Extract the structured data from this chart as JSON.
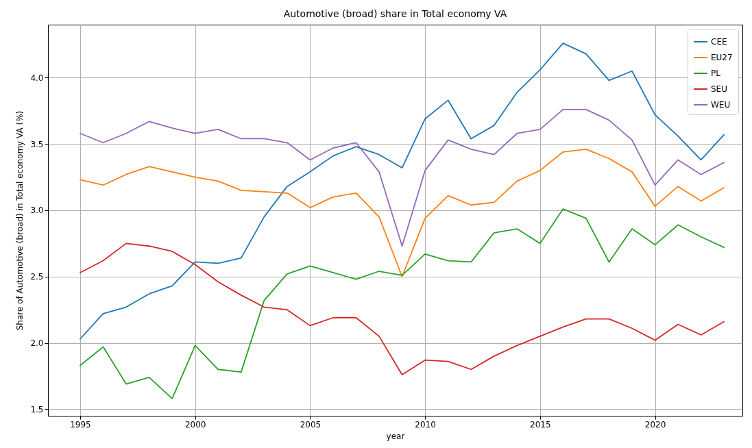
{
  "chart_data": {
    "type": "line",
    "title": "Automotive (broad) share in Total economy VA",
    "xlabel": "year",
    "ylabel": "Share of Automotive (broad) in Total economy VA (%)",
    "x": [
      1995,
      1996,
      1997,
      1998,
      1999,
      2000,
      2001,
      2002,
      2003,
      2004,
      2005,
      2006,
      2007,
      2008,
      2009,
      2010,
      2011,
      2012,
      2013,
      2014,
      2015,
      2016,
      2017,
      2018,
      2019,
      2020,
      2021,
      2022,
      2023
    ],
    "series": [
      {
        "name": "CEE",
        "color": "#1f77b4",
        "values": [
          2.03,
          2.22,
          2.27,
          2.37,
          2.43,
          2.61,
          2.6,
          2.64,
          2.95,
          3.18,
          3.29,
          3.41,
          3.48,
          3.42,
          3.32,
          3.69,
          3.83,
          3.54,
          3.64,
          3.89,
          4.06,
          4.26,
          4.18,
          3.98,
          4.05,
          3.72,
          3.56,
          3.38,
          3.57
        ]
      },
      {
        "name": "EU27",
        "color": "#ff7f0e",
        "values": [
          3.23,
          3.19,
          3.27,
          3.33,
          3.29,
          3.25,
          3.22,
          3.15,
          3.14,
          3.13,
          3.02,
          3.1,
          3.13,
          2.95,
          2.5,
          2.94,
          3.11,
          3.04,
          3.06,
          3.22,
          3.3,
          3.44,
          3.46,
          3.39,
          3.29,
          3.03,
          3.18,
          3.07,
          3.17
        ]
      },
      {
        "name": "PL",
        "color": "#2ca02c",
        "values": [
          1.83,
          1.97,
          1.69,
          1.74,
          1.58,
          1.98,
          1.8,
          1.78,
          2.32,
          2.52,
          2.58,
          2.53,
          2.48,
          2.54,
          2.51,
          2.67,
          2.62,
          2.61,
          2.83,
          2.86,
          2.75,
          3.01,
          2.94,
          2.61,
          2.86,
          2.74,
          2.89,
          2.8,
          2.72
        ]
      },
      {
        "name": "SEU",
        "color": "#d62728",
        "values": [
          2.53,
          2.62,
          2.75,
          2.73,
          2.69,
          2.59,
          2.46,
          2.36,
          2.27,
          2.25,
          2.13,
          2.19,
          2.19,
          2.05,
          1.76,
          1.87,
          1.86,
          1.8,
          1.9,
          1.98,
          2.05,
          2.12,
          2.18,
          2.18,
          2.11,
          2.02,
          2.14,
          2.06,
          2.16
        ]
      },
      {
        "name": "WEU",
        "color": "#9467bd",
        "values": [
          3.58,
          3.51,
          3.58,
          3.67,
          3.62,
          3.58,
          3.61,
          3.54,
          3.54,
          3.51,
          3.38,
          3.47,
          3.51,
          3.29,
          2.73,
          3.3,
          3.53,
          3.46,
          3.42,
          3.58,
          3.61,
          3.76,
          3.76,
          3.68,
          3.53,
          3.19,
          3.38,
          3.27,
          3.36
        ]
      }
    ],
    "xlim": [
      1993.6,
      2023.8
    ],
    "xticks": [
      1995,
      2000,
      2005,
      2010,
      2015,
      2020
    ],
    "ylim": [
      1.45,
      4.4
    ],
    "yticks": [
      1.5,
      {
        "value": 2,
        "label": "2.0"
      },
      2.5,
      {
        "value": 3,
        "label": "3.0"
      },
      3.5,
      {
        "value": 4,
        "label": "4.0"
      }
    ],
    "grid": true,
    "legend": "top right",
    "marker": "none",
    "line_style": "solid"
  }
}
